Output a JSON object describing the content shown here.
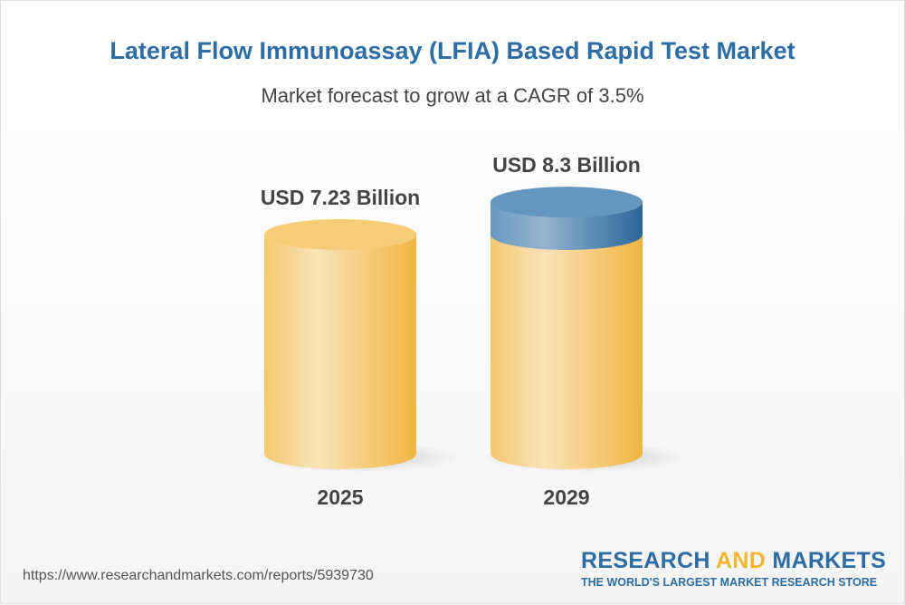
{
  "title": "Lateral Flow Immunoassay (LFIA) Based Rapid Test Market",
  "subtitle": "Market forecast to grow at a CAGR of 3.5%",
  "chart_data": {
    "type": "bar",
    "style": "3d-cylinder",
    "categories": [
      "2025",
      "2029"
    ],
    "values": [
      7.23,
      8.3
    ],
    "unit": "USD Billion",
    "data_labels": [
      "USD 7.23 Billion",
      "USD 8.3 Billion"
    ],
    "cagr": "3.5%",
    "colors": {
      "base": "#f3c363",
      "growth": "#5b8fba"
    }
  },
  "footer": {
    "url": "https://www.researchandmarkets.com/reports/5939730",
    "logo_part1": "RESEARCH ",
    "logo_part2": "AND",
    "logo_part3": " MARKETS",
    "logo_tagline": "THE WORLD'S LARGEST MARKET RESEARCH STORE"
  }
}
